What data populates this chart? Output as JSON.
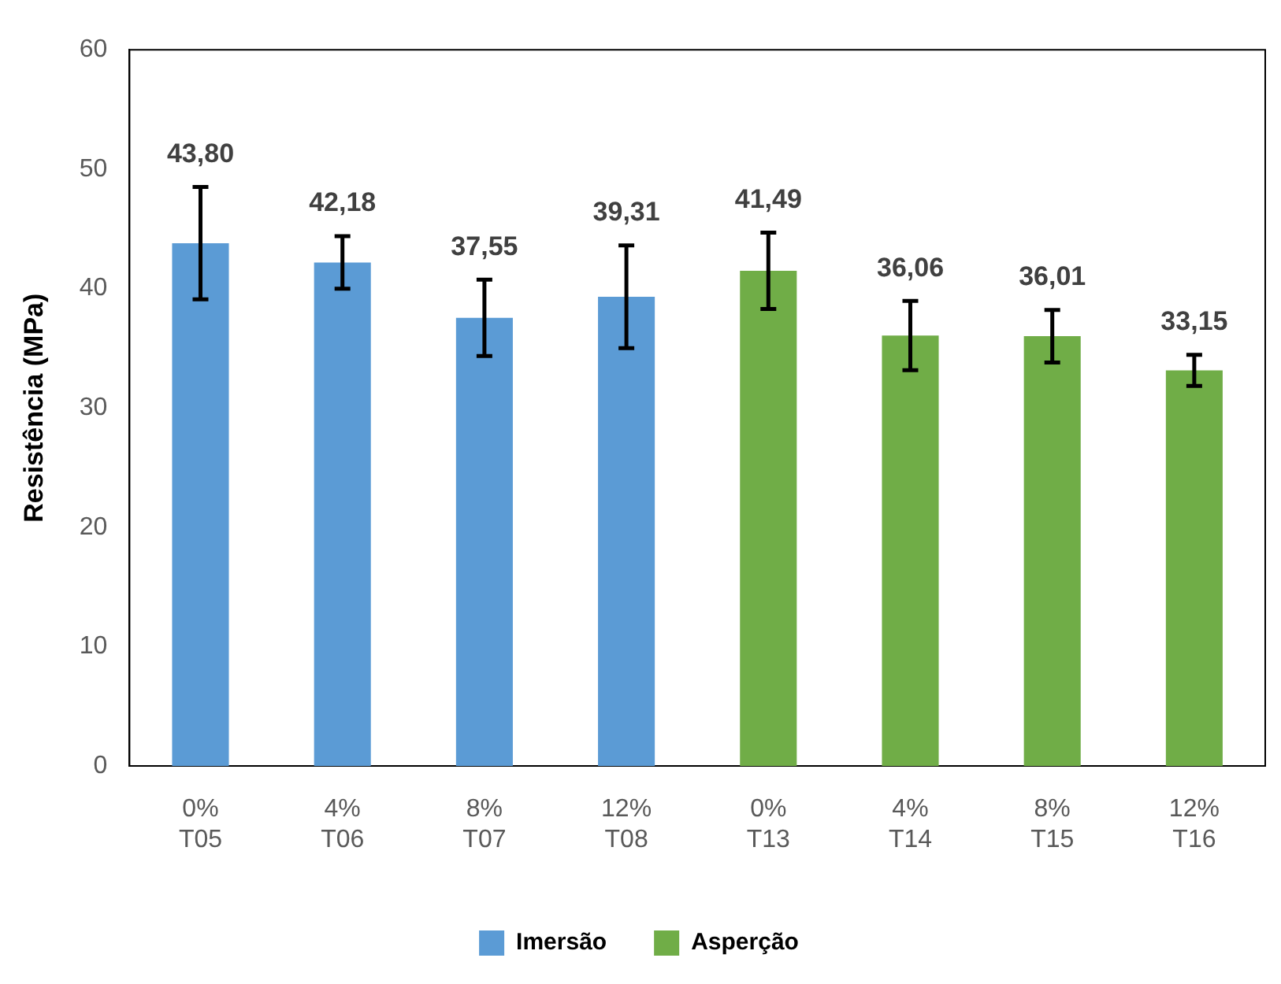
{
  "chart_data": {
    "type": "bar",
    "ylabel": "Resistência (MPa)",
    "categories": [
      "0%\nT05",
      "4%\nT06",
      "8%\nT07",
      "12%\nT08",
      "0%\nT13",
      "4%\nT14",
      "8%\nT15",
      "12%\nT16"
    ],
    "series": [
      {
        "name": "Imersão",
        "color": "#5b9bd5",
        "values": [
          43.8,
          42.18,
          37.55,
          39.31,
          null,
          null,
          null,
          null
        ],
        "errors": [
          4.7,
          2.2,
          3.2,
          4.3,
          null,
          null,
          null,
          null
        ],
        "value_labels": [
          "43,80",
          "42,18",
          "37,55",
          "39,31",
          null,
          null,
          null,
          null
        ]
      },
      {
        "name": "Asperção",
        "color": "#70ad47",
        "values": [
          null,
          null,
          null,
          null,
          41.49,
          36.06,
          36.01,
          33.15
        ],
        "errors": [
          null,
          null,
          null,
          null,
          3.2,
          2.9,
          2.2,
          1.3
        ],
        "value_labels": [
          null,
          null,
          null,
          null,
          "41,49",
          "36,06",
          "36,01",
          "33,15"
        ]
      }
    ],
    "ylim": [
      0,
      60
    ],
    "yticks": [
      0,
      10,
      20,
      30,
      40,
      50,
      60
    ],
    "grid": false,
    "legend": "bottom"
  }
}
